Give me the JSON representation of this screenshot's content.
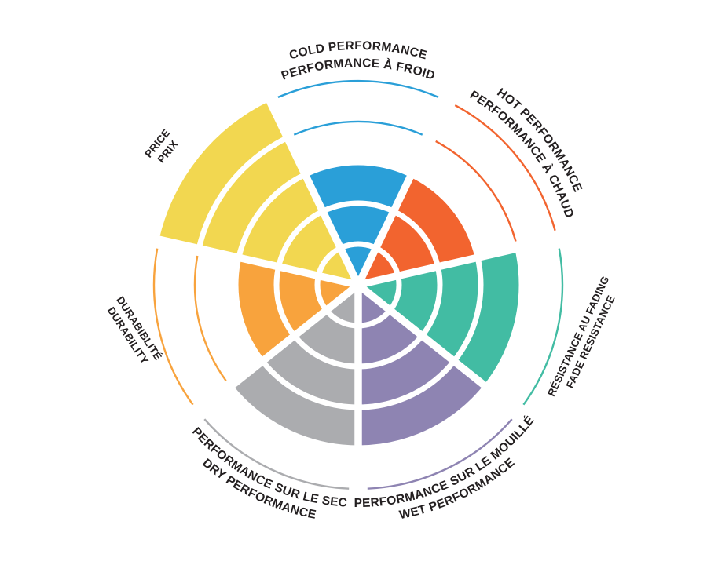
{
  "page": {
    "background": "#FFFFFF",
    "text_color": "#231F20",
    "separator_color": "#FFFFFF"
  },
  "chart_data": {
    "type": "radar",
    "variant": "segmented polar rating wheel (tire performance)",
    "scale": {
      "min": 0,
      "max": 5,
      "ring_count": 5
    },
    "grid": "concentric white ring separators inside filled wedges; unfilled levels shown as thin colored arcs",
    "legend_position": "bilingual labels around wheel",
    "categories": [
      "COLD PERFORMANCE",
      "HOT PERFORMANCE",
      "FADE RESISTANCE",
      "WET PERFORMANCE",
      "DRY PERFORMANCE",
      "DURABILITY",
      "PRICE"
    ],
    "values": [
      3,
      3,
      4,
      4,
      4,
      3,
      5
    ],
    "segments": [
      {
        "id": "cold",
        "lines": [
          "COLD PERFORMANCE",
          "PERFORMANCE À FROID"
        ],
        "value": 3,
        "color": "#2A9FD8",
        "label_style": "curved"
      },
      {
        "id": "hot",
        "lines": [
          "HOT PERFORMANCE",
          "PERFORMANCE À CHAUD"
        ],
        "value": 3,
        "color": "#F2642F",
        "label_style": "curved"
      },
      {
        "id": "fade",
        "lines": [
          "RÉSISTANCE AU FADING",
          "FADE RESISTANCE"
        ],
        "value": 4,
        "color": "#42BCA3",
        "label_style": "straight"
      },
      {
        "id": "wet",
        "lines": [
          "PERFORMANCE SUR LE MOUILLÉ",
          "WET PERFORMANCE"
        ],
        "value": 4,
        "color": "#8E84B2",
        "label_style": "curved"
      },
      {
        "id": "dry",
        "lines": [
          "PERFORMANCE SUR LE SEC",
          "DRY PERFORMANCE"
        ],
        "value": 4,
        "color": "#ABACAF",
        "label_style": "curved"
      },
      {
        "id": "durability",
        "lines": [
          "DURABIBLITÉ",
          "DURABILITY"
        ],
        "value": 3,
        "color": "#F8A33D",
        "label_style": "straight"
      },
      {
        "id": "price",
        "lines": [
          "PRICE",
          "PRIX"
        ],
        "value": 5,
        "color": "#F2D750",
        "label_style": "straight"
      }
    ]
  }
}
